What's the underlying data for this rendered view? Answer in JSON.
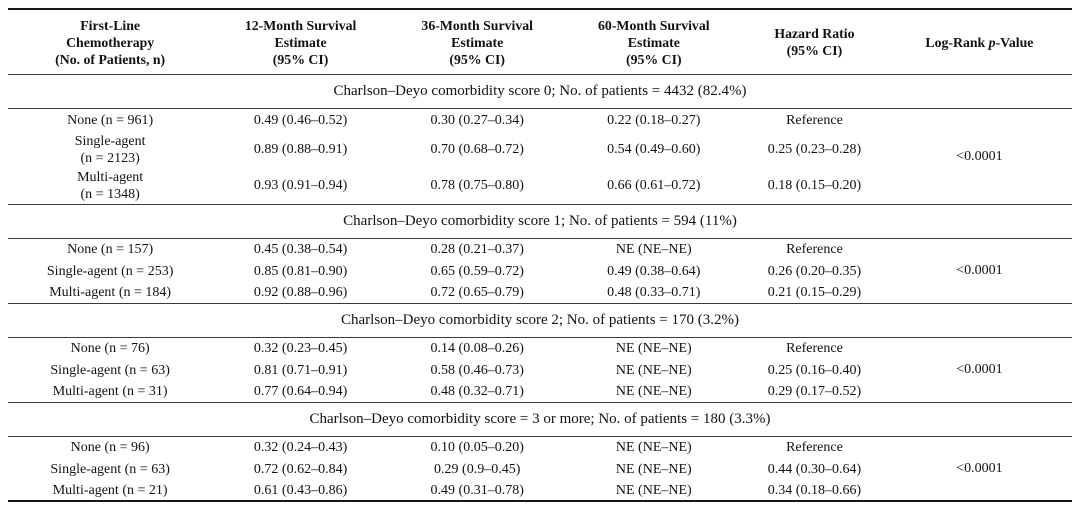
{
  "table": {
    "columns": [
      "First-Line\nChemotherapy\n(No. of Patients, n)",
      "12-Month Survival\nEstimate\n(95% CI)",
      "36-Month Survival\nEstimate\n(95% CI)",
      "60-Month Survival\nEstimate\n(95% CI)",
      "Hazard Ratio\n(95% CI)",
      {
        "pre": "Log-Rank ",
        "italic": "p",
        "post": "-Value"
      }
    ],
    "sections": [
      {
        "header": "Charlson–Deyo comorbidity score 0; No. of patients = 4432 (82.4%)",
        "p_value": "<0.0001",
        "rows": [
          {
            "label": "None (n = 961)",
            "m12": "0.49 (0.46–0.52)",
            "m36": "0.30 (0.27–0.34)",
            "m60": "0.22 (0.18–0.27)",
            "hazard": "Reference"
          },
          {
            "label": "Single-agent\n(n = 2123)",
            "m12": "0.89 (0.88–0.91)",
            "m36": "0.70 (0.68–0.72)",
            "m60": "0.54 (0.49–0.60)",
            "hazard": "0.25 (0.23–0.28)"
          },
          {
            "label": "Multi-agent\n(n = 1348)",
            "m12": "0.93 (0.91–0.94)",
            "m36": "0.78 (0.75–0.80)",
            "m60": "0.66 (0.61–0.72)",
            "hazard": "0.18 (0.15–0.20)"
          }
        ]
      },
      {
        "header": "Charlson–Deyo comorbidity score 1; No. of patients = 594 (11%)",
        "p_value": "<0.0001",
        "rows": [
          {
            "label": "None (n = 157)",
            "m12": "0.45 (0.38–0.54)",
            "m36": "0.28 (0.21–0.37)",
            "m60": "NE (NE–NE)",
            "hazard": "Reference"
          },
          {
            "label": "Single-agent (n = 253)",
            "m12": "0.85 (0.81–0.90)",
            "m36": "0.65 (0.59–0.72)",
            "m60": "0.49 (0.38–0.64)",
            "hazard": "0.26 (0.20–0.35)"
          },
          {
            "label": "Multi-agent (n = 184)",
            "m12": "0.92 (0.88–0.96)",
            "m36": "0.72 (0.65–0.79)",
            "m60": "0.48 (0.33–0.71)",
            "hazard": "0.21 (0.15–0.29)"
          }
        ]
      },
      {
        "header": "Charlson–Deyo comorbidity score 2; No. of patients = 170 (3.2%)",
        "p_value": "<0.0001",
        "rows": [
          {
            "label": "None (n = 76)",
            "m12": "0.32 (0.23–0.45)",
            "m36": "0.14 (0.08–0.26)",
            "m60": "NE (NE–NE)",
            "hazard": "Reference"
          },
          {
            "label": "Single-agent (n = 63)",
            "m12": "0.81 (0.71–0.91)",
            "m36": "0.58 (0.46–0.73)",
            "m60": "NE (NE–NE)",
            "hazard": "0.25 (0.16–0.40)"
          },
          {
            "label": "Multi-agent (n = 31)",
            "m12": "0.77 (0.64–0.94)",
            "m36": "0.48 (0.32–0.71)",
            "m60": "NE (NE–NE)",
            "hazard": "0.29 (0.17–0.52)"
          }
        ]
      },
      {
        "header": "Charlson–Deyo comorbidity score = 3 or more; No. of patients = 180 (3.3%)",
        "p_value": "<0.0001",
        "rows": [
          {
            "label": "None (n = 96)",
            "m12": "0.32 (0.24–0.43)",
            "m36": "0.10 (0.05–0.20)",
            "m60": "NE (NE–NE)",
            "hazard": "Reference"
          },
          {
            "label": "Single-agent (n = 63)",
            "m12": "0.72 (0.62–0.84)",
            "m36": "0.29 (0.9–0.45)",
            "m60": "NE (NE–NE)",
            "hazard": "0.44 (0.30–0.64)"
          },
          {
            "label": "Multi-agent (n = 21)",
            "m12": "0.61 (0.43–0.86)",
            "m36": "0.49 (0.31–0.78)",
            "m60": "NE (NE–NE)",
            "hazard": "0.34 (0.18–0.66)"
          }
        ]
      }
    ]
  }
}
